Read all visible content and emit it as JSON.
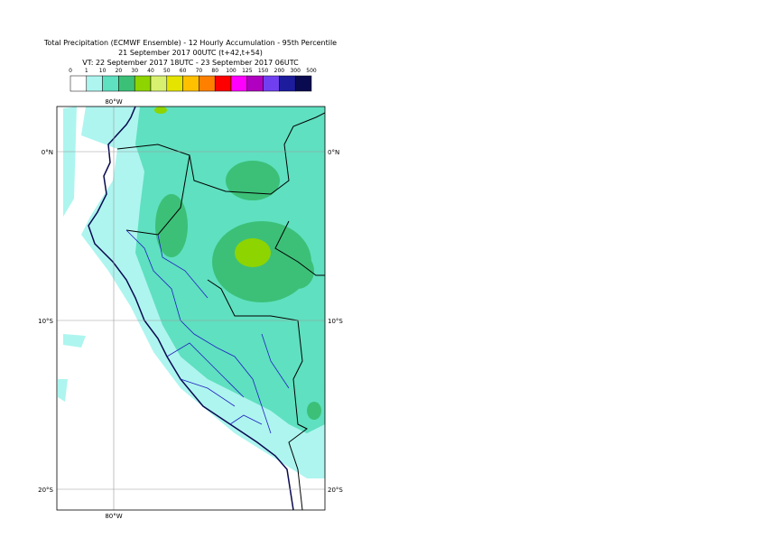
{
  "header": {
    "title": "Total Precipitation (ECMWF Ensemble) - 12 Hourly Accumulation - 95th Percentile",
    "run": "21 September 2017 00UTC (t+42,t+54)",
    "valid": "VT: 22 September 2017 18UTC - 23 September 2017 06UTC"
  },
  "legend": {
    "labels": [
      "0",
      "1",
      "10",
      "20",
      "30",
      "40",
      "50",
      "60",
      "70",
      "80",
      "100",
      "125",
      "150",
      "200",
      "300",
      "500"
    ],
    "colors": [
      "#ffffff",
      "#aef5ef",
      "#5fe0c0",
      "#3cc078",
      "#8ed400",
      "#d8f070",
      "#e4e400",
      "#ffc000",
      "#ff8000",
      "#ff0000",
      "#ff00ff",
      "#b000c0",
      "#7040f0",
      "#1c1c9c",
      "#0a0a50"
    ]
  },
  "map": {
    "lon_labels": [
      "80°W"
    ],
    "lat_labels": [
      "0°N",
      "10°S",
      "20°S"
    ]
  }
}
